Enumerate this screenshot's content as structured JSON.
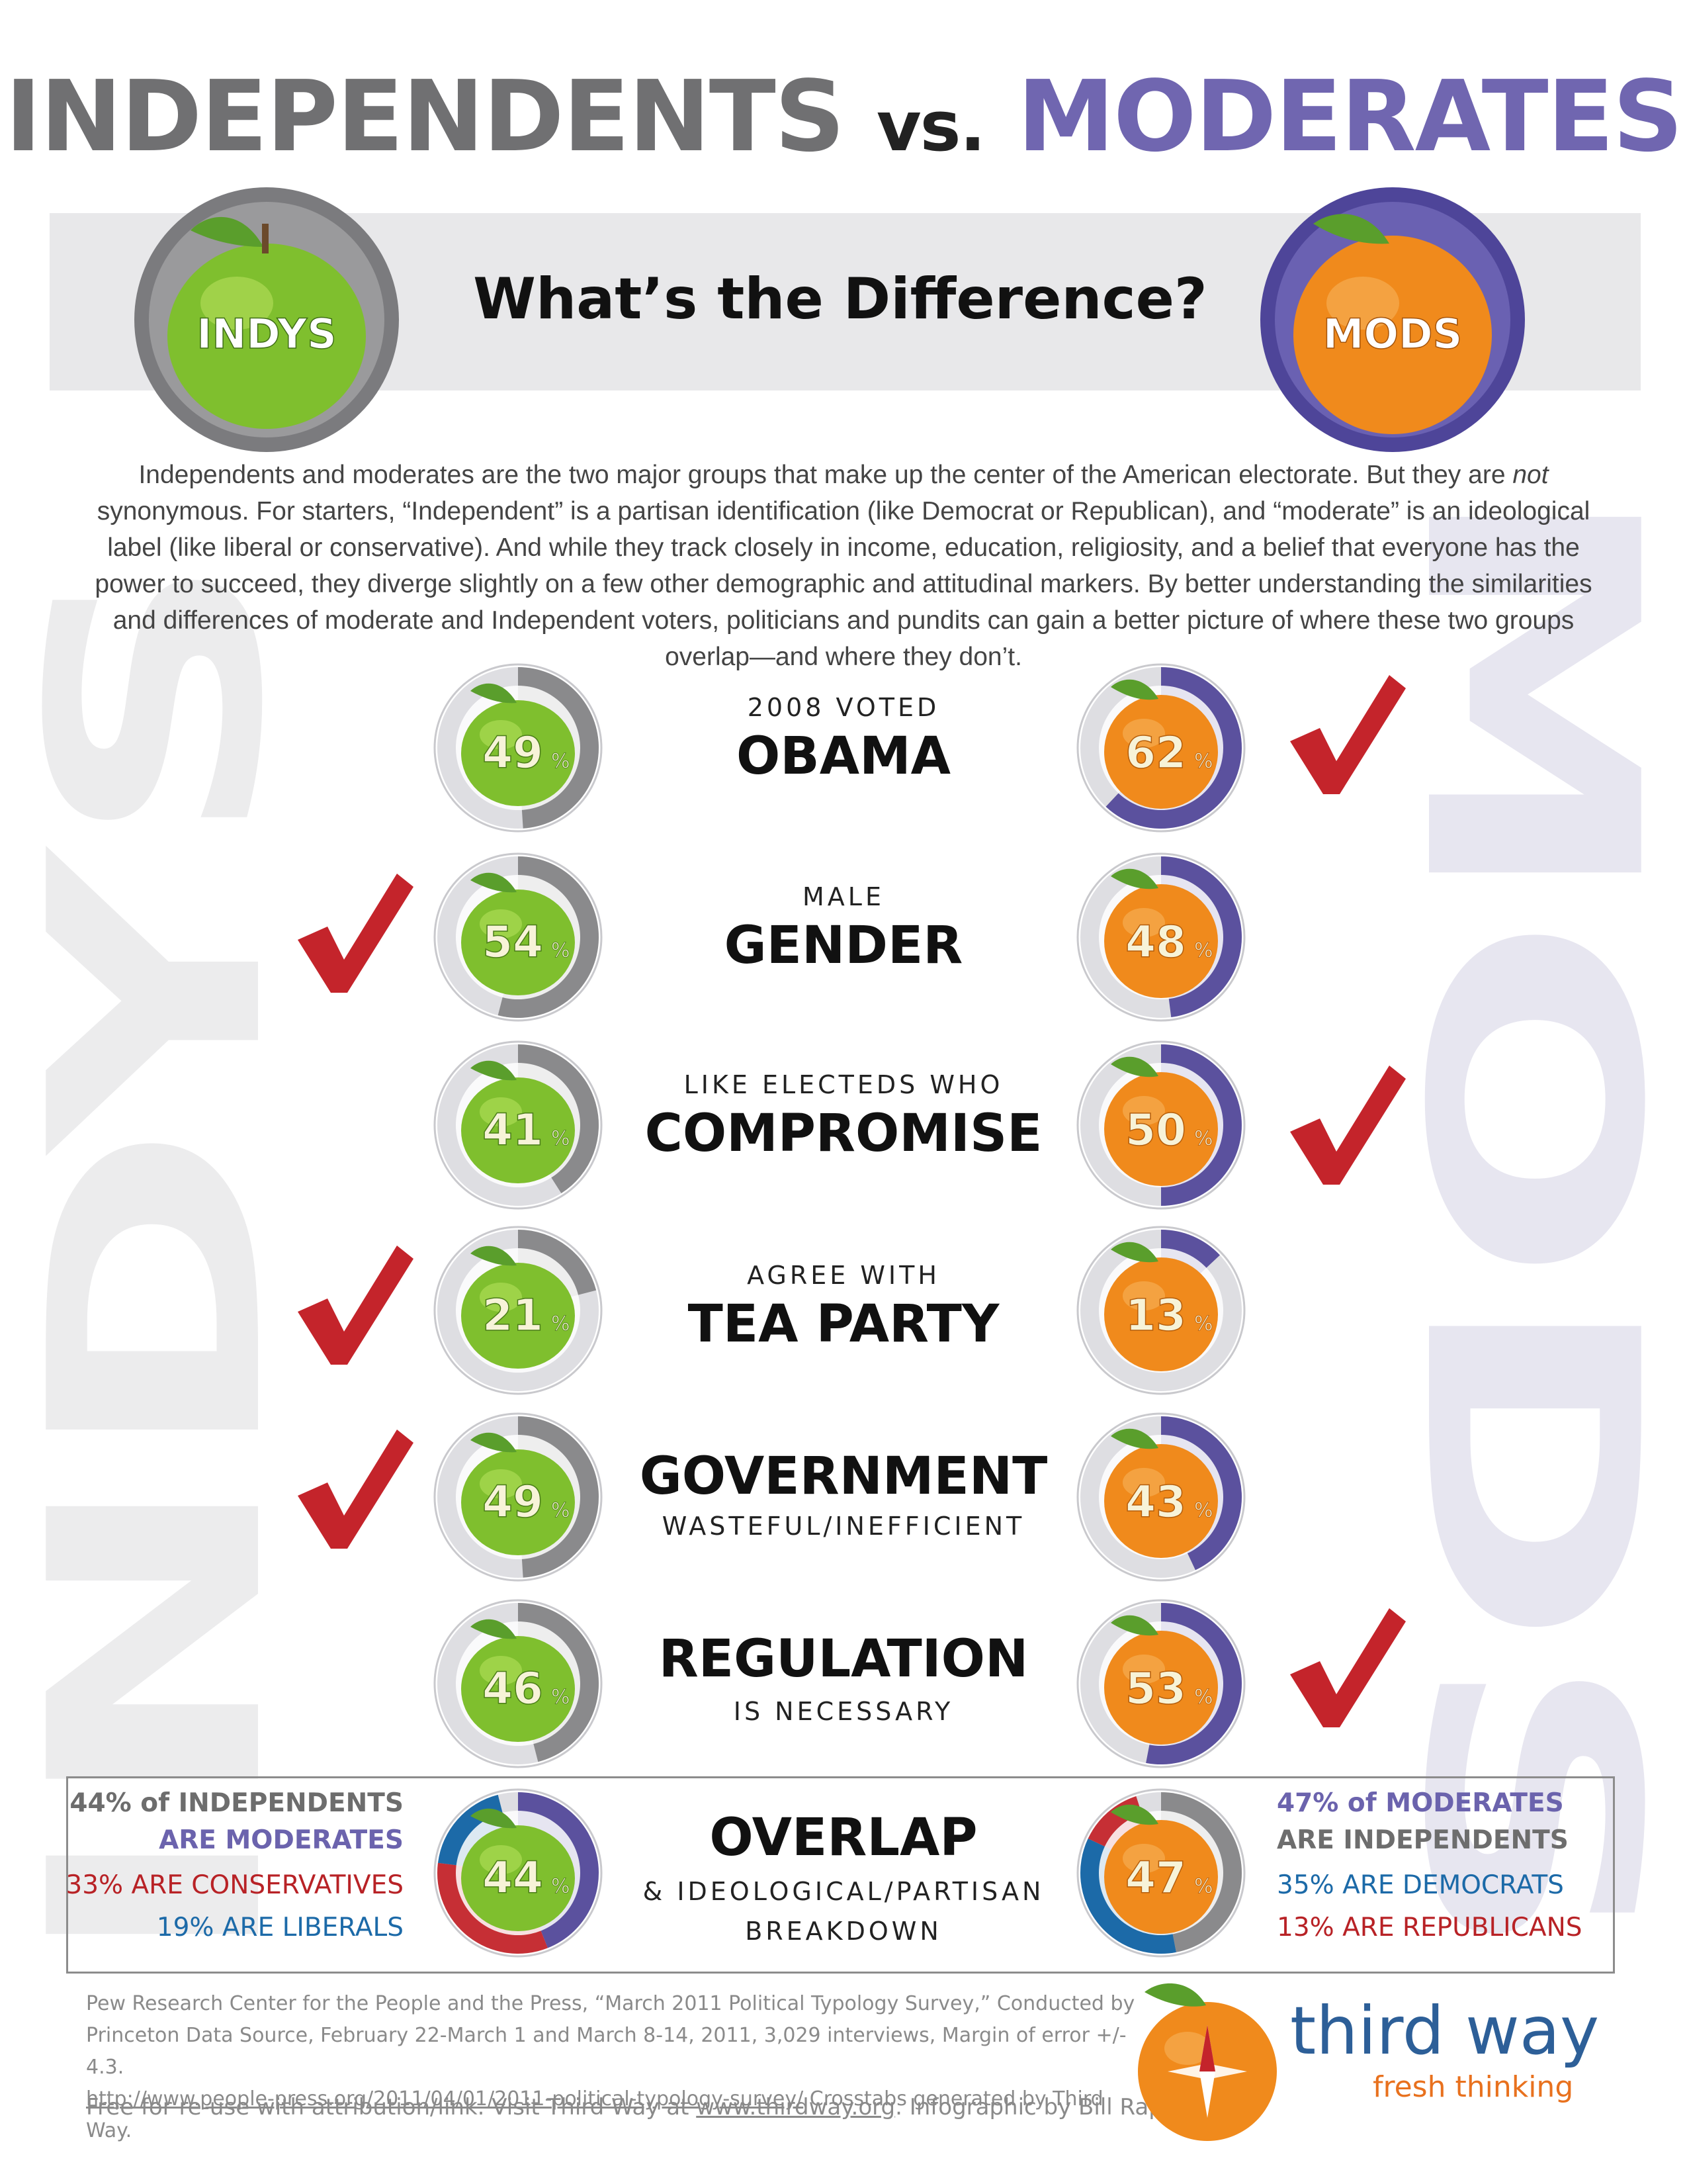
{
  "header": {
    "title_left": "INDEPENDENTS",
    "title_vs": "vs.",
    "title_right": "MODERATES",
    "subtitle": "What’s the Difference?",
    "badge_left": "INDYS",
    "badge_right": "MODS",
    "side_word_left": "INDYS",
    "side_word_right": "MODS"
  },
  "intro": {
    "part1": "Independents and moderates are the two major groups that make up the center of the American electorate. But they are ",
    "emph": "not",
    "part2": " synonymous. For starters, “Independent” is a partisan identification (like Democrat or Republican), and “moderate” is an ideological label (like liberal or conservative). And while they track closely in income, education, religiosity, and a belief that everyone has the power to succeed, they diverge slightly on a few other demographic and attitudinal markers. By better understanding the similarities and differences of moderate and Independent voters, politicians and pundits can gain a better picture of where these two groups overlap—and where they don’t."
  },
  "chart_data": {
    "type": "pie",
    "series": [
      {
        "name": "INDYS",
        "values": [
          49,
          54,
          41,
          21,
          49,
          46,
          44
        ]
      },
      {
        "name": "MODS",
        "values": [
          62,
          48,
          50,
          13,
          43,
          53,
          47
        ]
      }
    ],
    "rows": [
      {
        "small": "2008 VOTED",
        "big": "OBAMA",
        "order": "small-first",
        "indys": 49,
        "mods": 62,
        "check": "mods"
      },
      {
        "small": "MALE",
        "big": "GENDER",
        "order": "small-first",
        "indys": 54,
        "mods": 48,
        "check": "indys"
      },
      {
        "small": "LIKE ELECTEDS WHO",
        "big": "COMPROMISE",
        "order": "small-first",
        "indys": 41,
        "mods": 50,
        "check": "mods"
      },
      {
        "small": "AGREE WITH",
        "big": "TEA PARTY",
        "order": "small-first",
        "indys": 21,
        "mods": 13,
        "check": "indys"
      },
      {
        "small": "WASTEFUL/INEFFICIENT",
        "big": "GOVERNMENT",
        "order": "big-first",
        "indys": 49,
        "mods": 43,
        "check": "indys"
      },
      {
        "small": "IS NECESSARY",
        "big": "REGULATION",
        "order": "big-first",
        "indys": 46,
        "mods": 53,
        "check": "mods"
      }
    ],
    "overlap": {
      "big": "OVERLAP",
      "line1": "& IDEOLOGICAL/PARTISAN",
      "line2": "BREAKDOWN",
      "indys": {
        "value": 44,
        "segments": {
          "moderates": 44,
          "conservatives": 33,
          "liberals": 19
        }
      },
      "mods": {
        "value": 47,
        "segments": {
          "independents": 47,
          "democrats": 35,
          "republicans": 13
        }
      }
    },
    "colors": {
      "indys": "#8a8a8c",
      "mods": "#5b519e",
      "track": "#dedee2",
      "conservatives": "#c62f35",
      "liberals": "#1c6aa8",
      "check": "#c4242b"
    }
  },
  "overlap_text": {
    "left_line1": "44% of INDEPENDENTS",
    "left_line2": "ARE MODERATES",
    "left_line3": "33% ARE CONSERVATIVES",
    "left_line4": "19% ARE LIBERALS",
    "right_line1": "47% of MODERATES",
    "right_line2": "ARE INDEPENDENTS",
    "right_line3": "35% ARE DEMOCRATS",
    "right_line4": "13% ARE REPUBLICANS"
  },
  "footer": {
    "source_line1": "Pew Research Center for the People and the Press, “March 2011 Political Typology Survey,” Conducted by",
    "source_line2": "Princeton Data Source, February 22-March 1 and March 8-14, 2011, 3,029 interviews, Margin of error +/- 4.3.",
    "source_link": "http://www.people-press.org/2011/04/01/2011-political-typology-survey/",
    "source_tail": " Crosstabs generated by Third Way.",
    "free_prefix": "Free for re-use with attribution/link. Visit Third Way at ",
    "free_link": "www.thirdway.org",
    "free_suffix": ". Infographic by Bill Rapp.",
    "brand": "third way",
    "tagline": "fresh thinking"
  }
}
